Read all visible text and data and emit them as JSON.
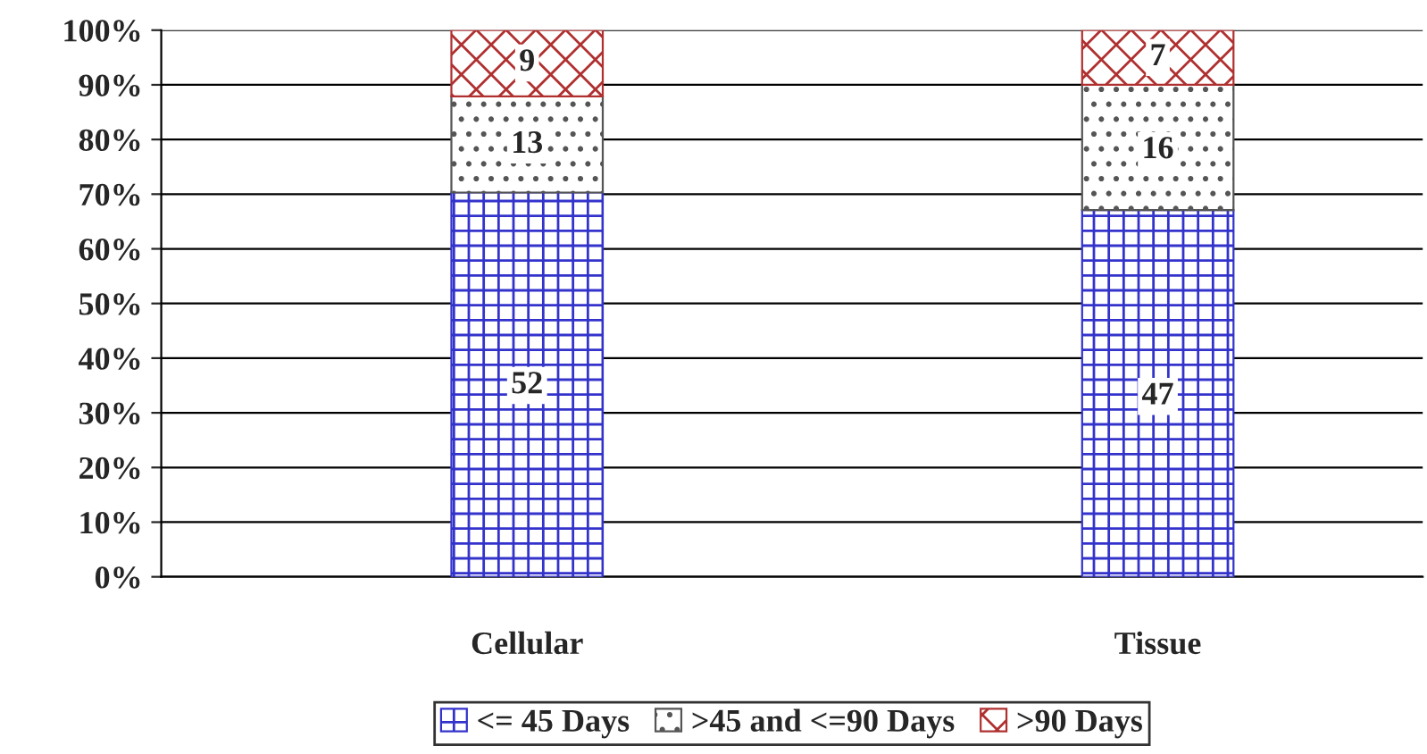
{
  "chart_data": {
    "type": "bar",
    "stacked": true,
    "categories": [
      "Cellular",
      "Tissue"
    ],
    "series": [
      {
        "name": "<= 45 Days",
        "color": "#3333cc",
        "values": [
          70.3,
          67.1
        ]
      },
      {
        "name": ">45 and <=90 Days",
        "color": "#555555",
        "values": [
          17.6,
          22.9
        ]
      },
      {
        "name": ">90 Days",
        "color": "#b03030",
        "values": [
          12.1,
          10.0
        ]
      }
    ],
    "annotations": [
      {
        "text": "52",
        "x": "Cellular",
        "y": 35
      },
      {
        "text": "47",
        "x": "Tissue",
        "y": 33
      },
      {
        "text": "13",
        "x": "Cellular",
        "y": 79
      },
      {
        "text": "16",
        "x": "Tissue",
        "y": 78
      },
      {
        "text": "9",
        "x": "Cellular",
        "y": 94
      },
      {
        "text": "7",
        "x": "Tissue",
        "y": 95
      }
    ],
    "ylim": [
      0,
      100
    ],
    "yticks": [
      {
        "value": 0,
        "label": "0%"
      },
      {
        "value": 10,
        "label": "10%"
      },
      {
        "value": 20,
        "label": "20%"
      },
      {
        "value": 30,
        "label": "30%"
      },
      {
        "value": 40,
        "label": "40%"
      },
      {
        "value": 50,
        "label": "50%"
      },
      {
        "value": 60,
        "label": "60%"
      },
      {
        "value": 70,
        "label": "70%"
      },
      {
        "value": 80,
        "label": "80%"
      },
      {
        "value": 90,
        "label": "90%"
      },
      {
        "value": 100,
        "label": "100%"
      }
    ],
    "grid": "y",
    "legend": "bottom"
  }
}
